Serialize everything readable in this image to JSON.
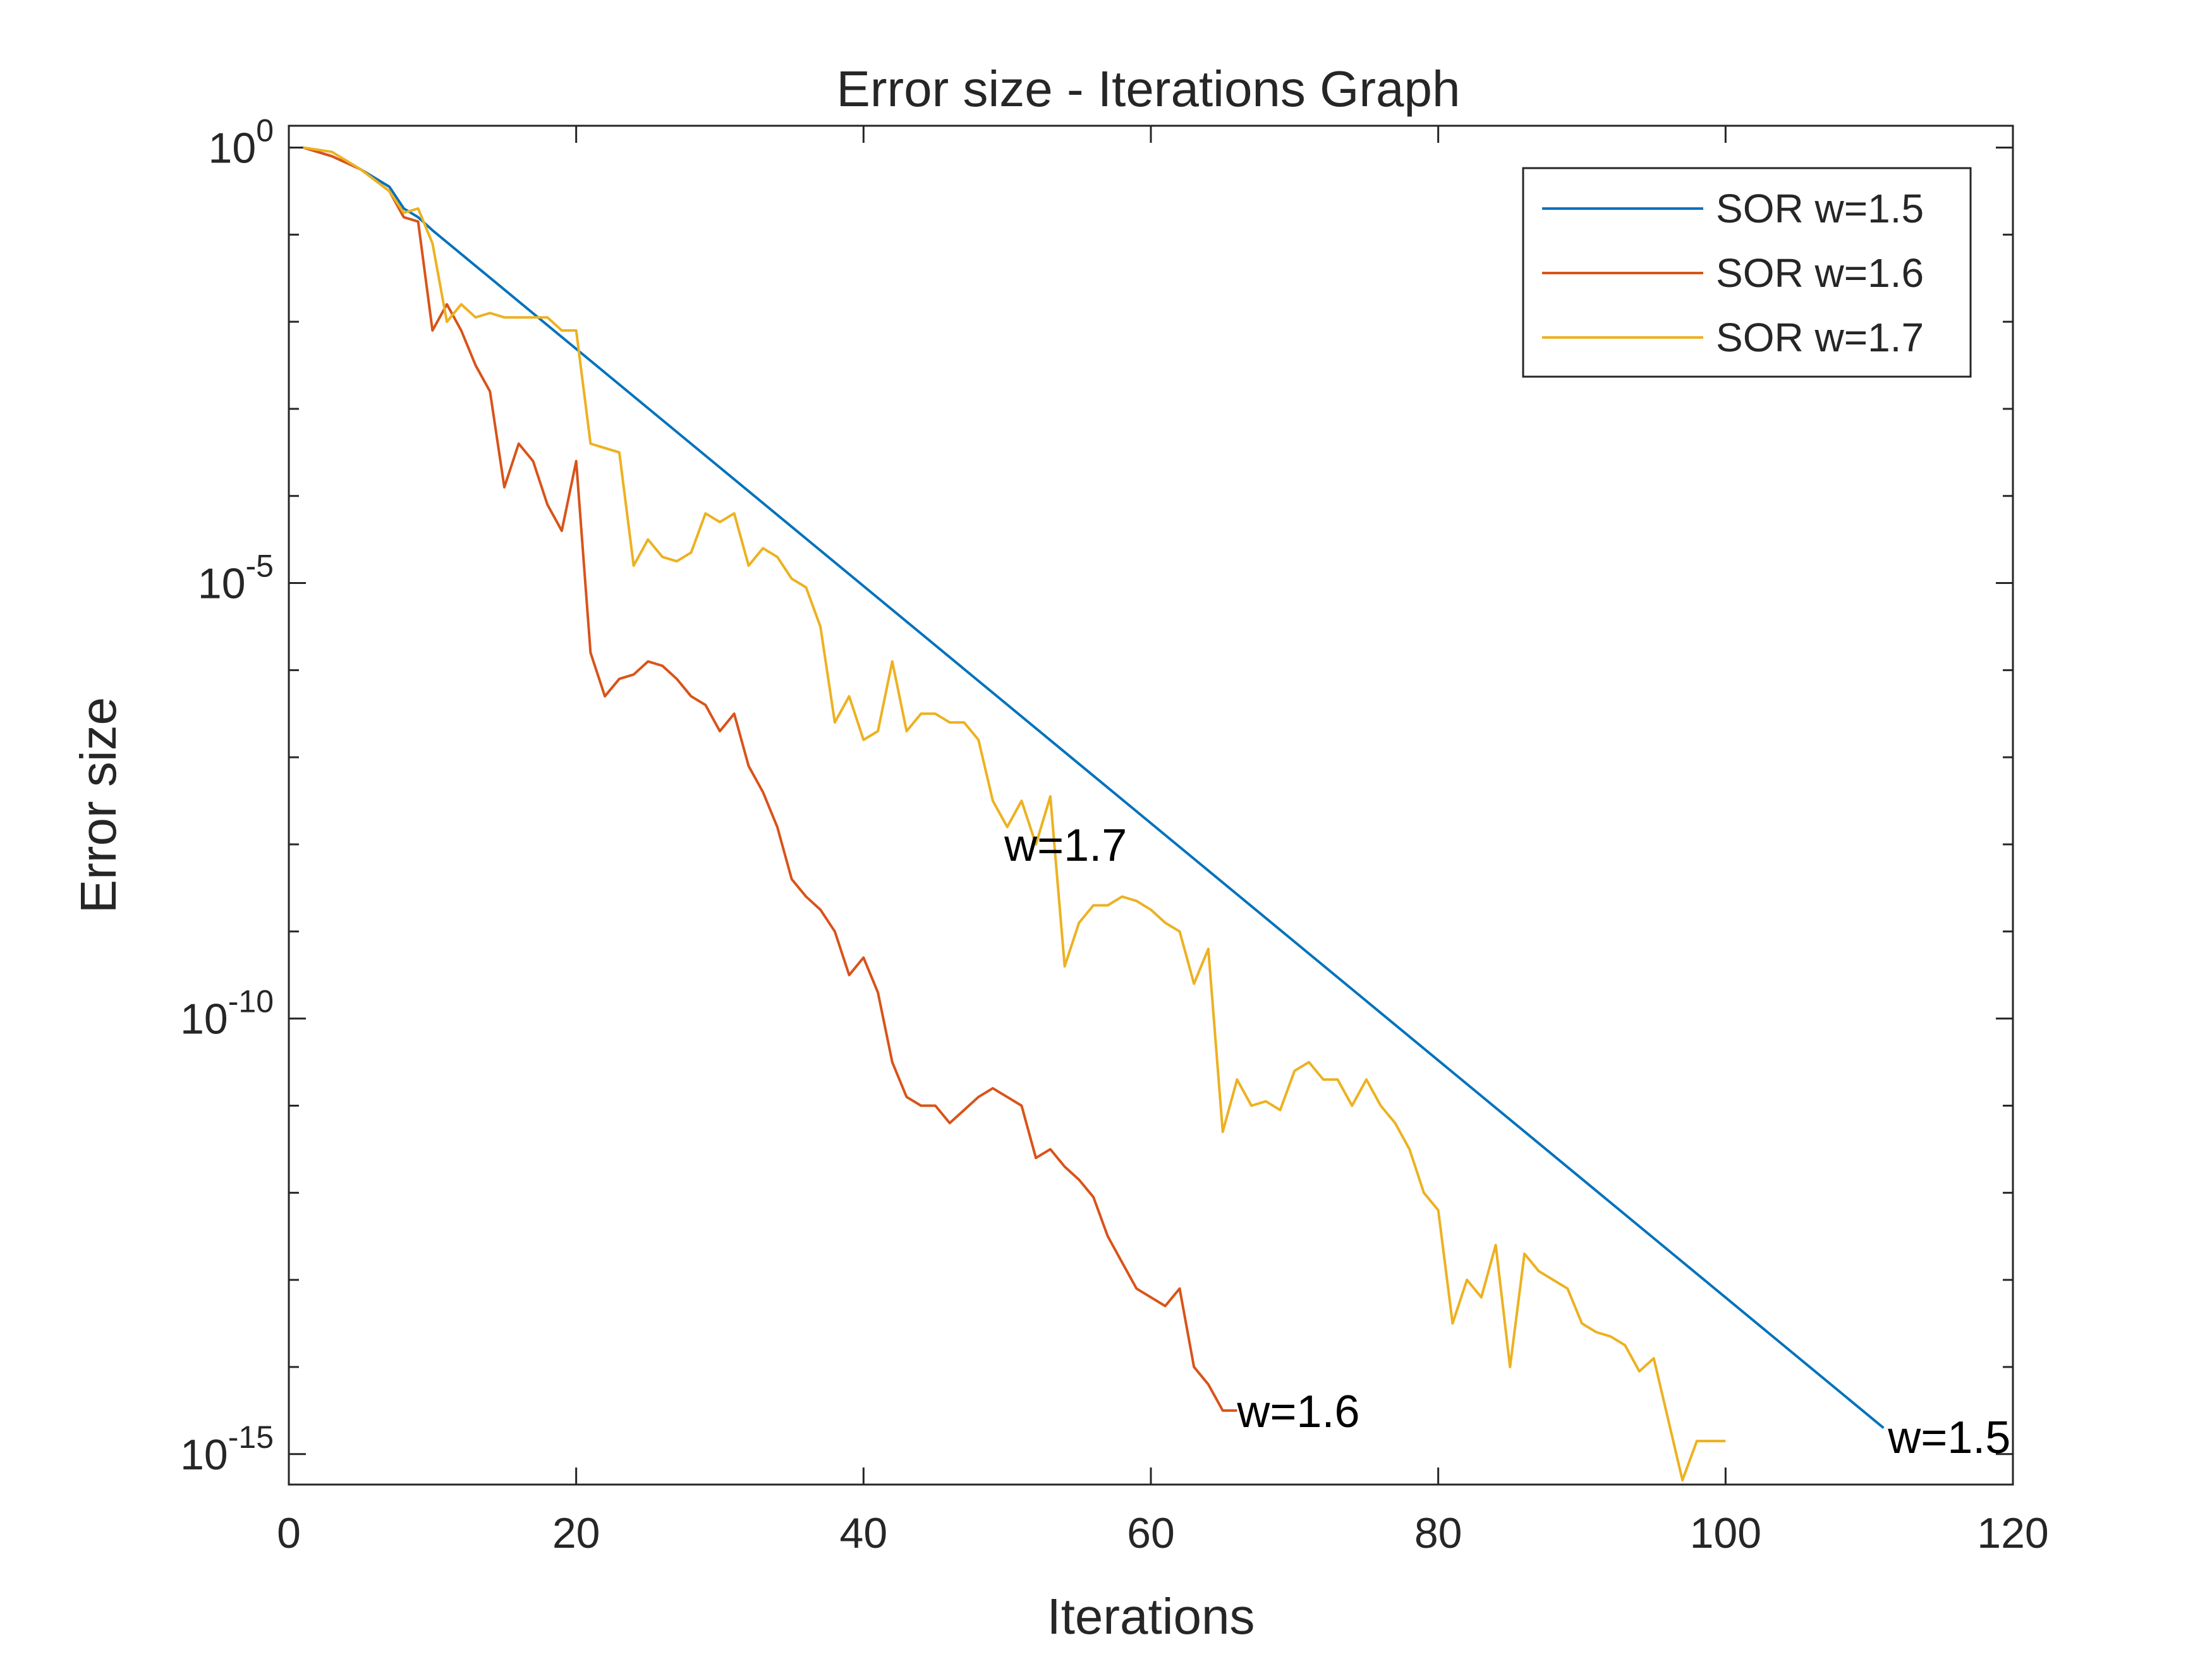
{
  "chart_data": {
    "type": "line",
    "title": "Error size - Iterations Graph",
    "xlabel": "Iterations",
    "ylabel": "Error size",
    "xlim": [
      0,
      120
    ],
    "ylim_log10": [
      -15.35,
      0.25
    ],
    "yscale": "log",
    "grid": false,
    "legend_position": "top-right",
    "xticks": [
      "0",
      "20",
      "40",
      "60",
      "80",
      "100",
      "120"
    ],
    "yticks": [
      {
        "base": "10",
        "exp": "0"
      },
      {
        "base": "10",
        "exp": "-5"
      },
      {
        "base": "10",
        "exp": "-10"
      },
      {
        "base": "10",
        "exp": "-15"
      }
    ],
    "series": [
      {
        "name": "SOR w=1.5",
        "color": "#0072BD",
        "points": [
          [
            1,
            0.0
          ],
          [
            3,
            -0.1
          ],
          [
            5,
            -0.25
          ],
          [
            7,
            -0.45
          ],
          [
            8,
            -0.7
          ],
          [
            9,
            -0.8
          ],
          [
            10,
            -0.95
          ],
          [
            111,
            -14.7
          ]
        ]
      },
      {
        "name": "SOR w=1.6",
        "color": "#D95319",
        "points": [
          [
            1,
            0.0
          ],
          [
            3,
            -0.1
          ],
          [
            5,
            -0.25
          ],
          [
            7,
            -0.5
          ],
          [
            8,
            -0.8
          ],
          [
            9,
            -0.85
          ],
          [
            10,
            -2.1
          ],
          [
            11,
            -1.8
          ],
          [
            12,
            -2.1
          ],
          [
            13,
            -2.5
          ],
          [
            14,
            -2.8
          ],
          [
            15,
            -3.9
          ],
          [
            16,
            -3.4
          ],
          [
            17,
            -3.6
          ],
          [
            18,
            -4.1
          ],
          [
            19,
            -4.4
          ],
          [
            20,
            -3.6
          ],
          [
            21,
            -5.8
          ],
          [
            22,
            -6.3
          ],
          [
            23,
            -6.1
          ],
          [
            24,
            -6.05
          ],
          [
            25,
            -5.9
          ],
          [
            26,
            -5.95
          ],
          [
            27,
            -6.1
          ],
          [
            28,
            -6.3
          ],
          [
            29,
            -6.4
          ],
          [
            30,
            -6.7
          ],
          [
            31,
            -6.5
          ],
          [
            32,
            -7.1
          ],
          [
            33,
            -7.4
          ],
          [
            34,
            -7.8
          ],
          [
            35,
            -8.4
          ],
          [
            36,
            -8.6
          ],
          [
            37,
            -8.75
          ],
          [
            38,
            -9.0
          ],
          [
            39,
            -9.5
          ],
          [
            40,
            -9.3
          ],
          [
            41,
            -9.7
          ],
          [
            42,
            -10.5
          ],
          [
            43,
            -10.9
          ],
          [
            44,
            -11.0
          ],
          [
            45,
            -11.0
          ],
          [
            46,
            -11.2
          ],
          [
            47,
            -11.05
          ],
          [
            48,
            -10.9
          ],
          [
            49,
            -10.8
          ],
          [
            50,
            -10.9
          ],
          [
            51,
            -11.0
          ],
          [
            52,
            -11.6
          ],
          [
            53,
            -11.5
          ],
          [
            54,
            -11.7
          ],
          [
            55,
            -11.85
          ],
          [
            56,
            -12.05
          ],
          [
            57,
            -12.5
          ],
          [
            58,
            -12.8
          ],
          [
            59,
            -13.1
          ],
          [
            60,
            -13.2
          ],
          [
            61,
            -13.3
          ],
          [
            62,
            -13.1
          ],
          [
            63,
            -14.0
          ],
          [
            64,
            -14.2
          ],
          [
            65,
            -14.5
          ],
          [
            66,
            -14.5
          ]
        ]
      },
      {
        "name": "SOR w=1.7",
        "color": "#EDB120",
        "points": [
          [
            1,
            0.0
          ],
          [
            3,
            -0.05
          ],
          [
            5,
            -0.25
          ],
          [
            7,
            -0.5
          ],
          [
            8,
            -0.75
          ],
          [
            9,
            -0.7
          ],
          [
            10,
            -1.1
          ],
          [
            11,
            -2.0
          ],
          [
            12,
            -1.8
          ],
          [
            13,
            -1.95
          ],
          [
            14,
            -1.9
          ],
          [
            15,
            -1.95
          ],
          [
            16,
            -1.95
          ],
          [
            17,
            -1.95
          ],
          [
            18,
            -1.95
          ],
          [
            19,
            -2.1
          ],
          [
            20,
            -2.1
          ],
          [
            21,
            -3.4
          ],
          [
            22,
            -3.45
          ],
          [
            23,
            -3.5
          ],
          [
            24,
            -4.8
          ],
          [
            25,
            -4.5
          ],
          [
            26,
            -4.7
          ],
          [
            27,
            -4.75
          ],
          [
            28,
            -4.65
          ],
          [
            29,
            -4.2
          ],
          [
            30,
            -4.3
          ],
          [
            31,
            -4.2
          ],
          [
            32,
            -4.8
          ],
          [
            33,
            -4.6
          ],
          [
            34,
            -4.7
          ],
          [
            35,
            -4.95
          ],
          [
            36,
            -5.05
          ],
          [
            37,
            -5.5
          ],
          [
            38,
            -6.6
          ],
          [
            39,
            -6.3
          ],
          [
            40,
            -6.8
          ],
          [
            41,
            -6.7
          ],
          [
            42,
            -5.9
          ],
          [
            43,
            -6.7
          ],
          [
            44,
            -6.5
          ],
          [
            45,
            -6.5
          ],
          [
            46,
            -6.6
          ],
          [
            47,
            -6.6
          ],
          [
            48,
            -6.8
          ],
          [
            49,
            -7.5
          ],
          [
            50,
            -7.8
          ],
          [
            51,
            -7.5
          ],
          [
            52,
            -8.0
          ],
          [
            53,
            -7.45
          ],
          [
            54,
            -9.4
          ],
          [
            55,
            -8.9
          ],
          [
            56,
            -8.7
          ],
          [
            57,
            -8.7
          ],
          [
            58,
            -8.6
          ],
          [
            59,
            -8.65
          ],
          [
            60,
            -8.75
          ],
          [
            61,
            -8.9
          ],
          [
            62,
            -9.0
          ],
          [
            63,
            -9.6
          ],
          [
            64,
            -9.2
          ],
          [
            65,
            -11.3
          ],
          [
            66,
            -10.7
          ],
          [
            67,
            -11.0
          ],
          [
            68,
            -10.95
          ],
          [
            69,
            -11.05
          ],
          [
            70,
            -10.6
          ],
          [
            71,
            -10.5
          ],
          [
            72,
            -10.7
          ],
          [
            73,
            -10.7
          ],
          [
            74,
            -11.0
          ],
          [
            75,
            -10.7
          ],
          [
            76,
            -11.0
          ],
          [
            77,
            -11.2
          ],
          [
            78,
            -11.5
          ],
          [
            79,
            -12.0
          ],
          [
            80,
            -12.2
          ],
          [
            81,
            -13.5
          ],
          [
            82,
            -13.0
          ],
          [
            83,
            -13.2
          ],
          [
            84,
            -12.6
          ],
          [
            85,
            -14.0
          ],
          [
            86,
            -12.7
          ],
          [
            87,
            -12.9
          ],
          [
            88,
            -13.0
          ],
          [
            89,
            -13.1
          ],
          [
            90,
            -13.5
          ],
          [
            91,
            -13.6
          ],
          [
            92,
            -13.65
          ],
          [
            93,
            -13.75
          ],
          [
            94,
            -14.05
          ],
          [
            95,
            -13.9
          ],
          [
            96,
            -14.6
          ],
          [
            97,
            -15.3
          ],
          [
            98,
            -14.85
          ],
          [
            99,
            -14.85
          ],
          [
            100,
            -14.85
          ]
        ]
      }
    ],
    "annotations": [
      {
        "text": "w=1.7",
        "x": 49.8,
        "y": -8.0
      },
      {
        "text": "w=1.6",
        "x": 66.0,
        "y": -14.5
      },
      {
        "text": "w=1.5",
        "x": 111.3,
        "y": -14.8
      }
    ]
  }
}
